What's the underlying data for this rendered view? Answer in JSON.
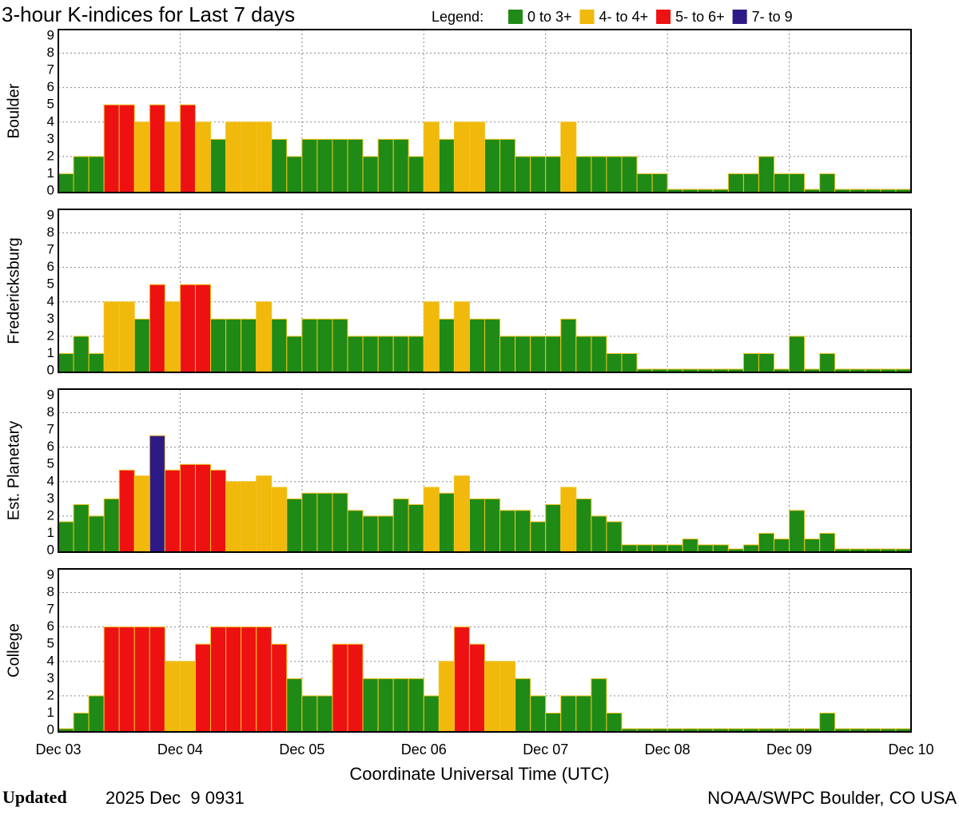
{
  "header": {
    "title": "3-hour K-indices for Last 7 days",
    "legend_title": "Legend:",
    "legend": [
      {
        "label": "0 to 3+",
        "color": "#1f8a15"
      },
      {
        "label": "4- to 4+",
        "color": "#f0b90b"
      },
      {
        "label": "5- to 6+",
        "color": "#ee1111"
      },
      {
        "label": "7- to 9",
        "color": "#2e1a87"
      }
    ]
  },
  "chart_data": [
    {
      "type": "bar",
      "ylabel": "Boulder",
      "ylim": [
        0,
        9
      ],
      "yticks": [
        0,
        1,
        2,
        3,
        4,
        5,
        6,
        7,
        8,
        9
      ],
      "values": [
        1,
        2,
        2,
        5,
        5,
        4,
        5,
        4,
        5,
        4,
        3,
        4,
        4,
        4,
        3,
        2,
        3,
        3,
        3,
        3,
        2,
        3,
        3,
        2,
        4,
        3,
        4,
        4,
        3,
        3,
        2,
        2,
        2,
        4,
        2,
        2,
        2,
        2,
        1,
        1,
        0,
        0,
        0,
        0,
        1,
        1,
        2,
        1,
        1,
        0,
        1,
        0,
        0,
        0,
        0,
        0
      ]
    },
    {
      "type": "bar",
      "ylabel": "Fredericksburg",
      "ylim": [
        0,
        9
      ],
      "yticks": [
        0,
        1,
        2,
        3,
        4,
        5,
        6,
        7,
        8,
        9
      ],
      "values": [
        1,
        2,
        1,
        4,
        4,
        3,
        5,
        4,
        5,
        5,
        3,
        3,
        3,
        4,
        3,
        2,
        3,
        3,
        3,
        2,
        2,
        2,
        2,
        2,
        4,
        3,
        4,
        3,
        3,
        2,
        2,
        2,
        2,
        3,
        2,
        2,
        1,
        1,
        0,
        0,
        0,
        0,
        0,
        0,
        0,
        1,
        1,
        0,
        2,
        0,
        1,
        0,
        0,
        0,
        0,
        0
      ]
    },
    {
      "type": "bar",
      "ylabel": "Est. Planetary",
      "ylim": [
        0,
        9
      ],
      "yticks": [
        0,
        1,
        2,
        3,
        4,
        5,
        6,
        7,
        8,
        9
      ],
      "values": [
        1.67,
        2.67,
        2,
        3,
        4.67,
        4.33,
        6.67,
        4.67,
        5,
        5,
        4.67,
        4,
        4,
        4.33,
        3.67,
        3,
        3.33,
        3.33,
        3.33,
        2.33,
        2,
        2,
        3,
        2.67,
        3.67,
        3.33,
        4.33,
        3,
        3,
        2.33,
        2.33,
        1.67,
        2.67,
        3.67,
        3,
        2,
        1.67,
        0.33,
        0.33,
        0.33,
        0.33,
        0.67,
        0.33,
        0.33,
        0,
        0.33,
        1,
        0.67,
        2.33,
        0.67,
        1,
        0,
        0,
        0,
        0,
        0
      ]
    },
    {
      "type": "bar",
      "ylabel": "College",
      "ylim": [
        0,
        9
      ],
      "yticks": [
        0,
        1,
        2,
        3,
        4,
        5,
        6,
        7,
        8,
        9
      ],
      "values": [
        0,
        1,
        2,
        6,
        6,
        6,
        6,
        4,
        4,
        5,
        6,
        6,
        6,
        6,
        5,
        3,
        2,
        2,
        5,
        5,
        3,
        3,
        3,
        3,
        2,
        4,
        6,
        5,
        4,
        4,
        3,
        2,
        1,
        2,
        2,
        3,
        1,
        0,
        0,
        0,
        0,
        0,
        0,
        0,
        0,
        0,
        0,
        0,
        0,
        0,
        1,
        0,
        0,
        0,
        0,
        0
      ]
    }
  ],
  "x_axis": {
    "labels": [
      "Dec 03",
      "Dec 04",
      "Dec 05",
      "Dec 06",
      "Dec 07",
      "Dec 08",
      "Dec 09",
      "Dec 10"
    ],
    "title": "Coordinate Universal Time (UTC)"
  },
  "footer": {
    "updated_label": "Updated",
    "updated": "2025 Dec  9 0931",
    "source": "NOAA/SWPC Boulder, CO USA"
  }
}
